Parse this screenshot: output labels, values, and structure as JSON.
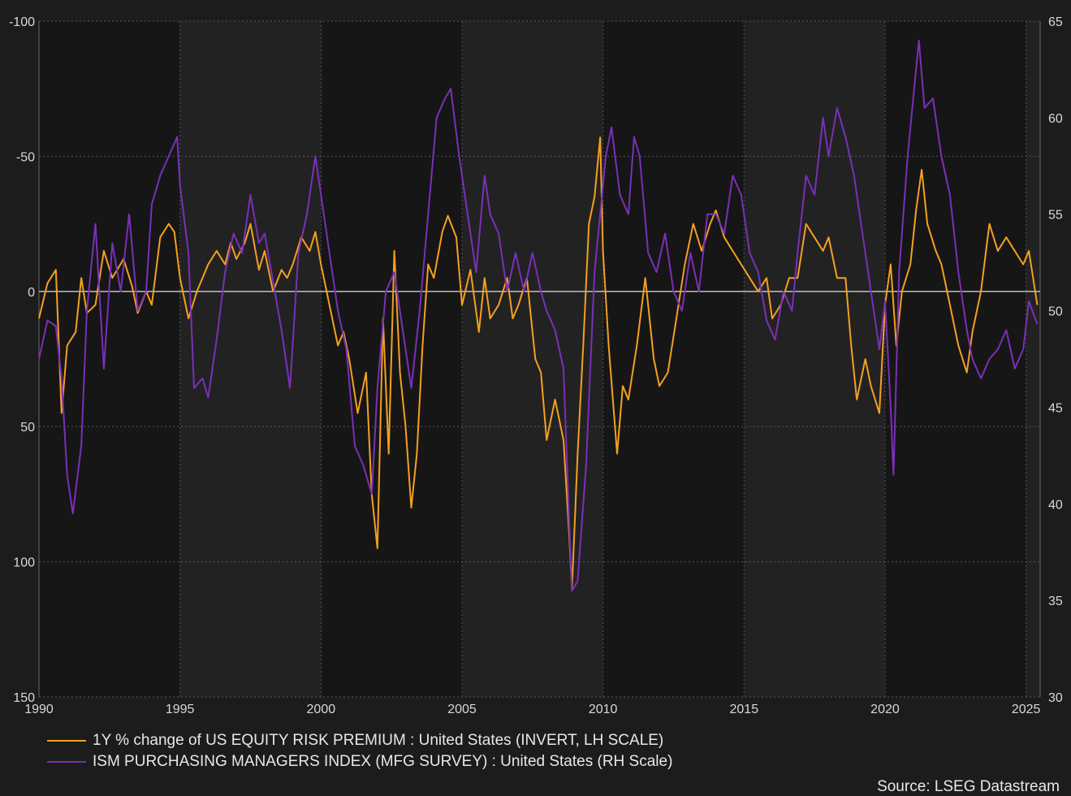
{
  "chart_data": {
    "type": "line",
    "x_ticks": [
      "1990",
      "1995",
      "2000",
      "2005",
      "2010",
      "2015",
      "2020",
      "2025"
    ],
    "x_range": [
      1990,
      2025.5
    ],
    "left_axis": {
      "ticks": [
        "-100",
        "-50",
        "0",
        "50",
        "100",
        "150"
      ],
      "range": [
        -100,
        150
      ],
      "inverted": true
    },
    "right_axis": {
      "ticks": [
        "65",
        "60",
        "55",
        "50",
        "45",
        "40",
        "35",
        "30"
      ],
      "range": [
        30,
        65
      ]
    },
    "grid": true,
    "zero_line": true,
    "legend_placement": "bottom-left",
    "series": [
      {
        "name": "1Y % change of US EQUITY RISK PREMIUM : United States (INVERT, LH SCALE)",
        "axis": "left",
        "color": "#f5a020",
        "points": [
          [
            1990.0,
            10
          ],
          [
            1990.3,
            -3
          ],
          [
            1990.6,
            -8
          ],
          [
            1990.8,
            45
          ],
          [
            1991.0,
            20
          ],
          [
            1991.3,
            15
          ],
          [
            1991.5,
            -5
          ],
          [
            1991.7,
            8
          ],
          [
            1992.0,
            5
          ],
          [
            1992.3,
            -15
          ],
          [
            1992.6,
            -5
          ],
          [
            1993.0,
            -12
          ],
          [
            1993.3,
            -2
          ],
          [
            1993.5,
            8
          ],
          [
            1993.8,
            0
          ],
          [
            1994.0,
            5
          ],
          [
            1994.3,
            -20
          ],
          [
            1994.6,
            -25
          ],
          [
            1994.8,
            -22
          ],
          [
            1995.0,
            -5
          ],
          [
            1995.3,
            10
          ],
          [
            1995.6,
            0
          ],
          [
            1995.8,
            -5
          ],
          [
            1996.0,
            -10
          ],
          [
            1996.3,
            -15
          ],
          [
            1996.6,
            -10
          ],
          [
            1996.8,
            -18
          ],
          [
            1997.0,
            -12
          ],
          [
            1997.3,
            -18
          ],
          [
            1997.5,
            -25
          ],
          [
            1997.8,
            -8
          ],
          [
            1998.0,
            -15
          ],
          [
            1998.3,
            0
          ],
          [
            1998.6,
            -8
          ],
          [
            1998.8,
            -5
          ],
          [
            1999.0,
            -10
          ],
          [
            1999.3,
            -20
          ],
          [
            1999.6,
            -15
          ],
          [
            1999.8,
            -22
          ],
          [
            2000.0,
            -10
          ],
          [
            2000.3,
            5
          ],
          [
            2000.6,
            20
          ],
          [
            2000.8,
            15
          ],
          [
            2001.0,
            25
          ],
          [
            2001.3,
            45
          ],
          [
            2001.6,
            30
          ],
          [
            2001.8,
            75
          ],
          [
            2002.0,
            95
          ],
          [
            2002.2,
            10
          ],
          [
            2002.4,
            60
          ],
          [
            2002.6,
            -15
          ],
          [
            2002.8,
            30
          ],
          [
            2003.0,
            50
          ],
          [
            2003.2,
            80
          ],
          [
            2003.4,
            60
          ],
          [
            2003.6,
            20
          ],
          [
            2003.8,
            -10
          ],
          [
            2004.0,
            -5
          ],
          [
            2004.3,
            -22
          ],
          [
            2004.5,
            -28
          ],
          [
            2004.8,
            -20
          ],
          [
            2005.0,
            5
          ],
          [
            2005.3,
            -8
          ],
          [
            2005.6,
            15
          ],
          [
            2005.8,
            -5
          ],
          [
            2006.0,
            10
          ],
          [
            2006.3,
            5
          ],
          [
            2006.6,
            -5
          ],
          [
            2006.8,
            10
          ],
          [
            2007.0,
            5
          ],
          [
            2007.3,
            -5
          ],
          [
            2007.6,
            25
          ],
          [
            2007.8,
            30
          ],
          [
            2008.0,
            55
          ],
          [
            2008.3,
            40
          ],
          [
            2008.6,
            55
          ],
          [
            2008.8,
            90
          ],
          [
            2008.9,
            110
          ],
          [
            2009.1,
            60
          ],
          [
            2009.3,
            20
          ],
          [
            2009.5,
            -25
          ],
          [
            2009.7,
            -35
          ],
          [
            2009.9,
            -57
          ],
          [
            2010.0,
            -15
          ],
          [
            2010.2,
            20
          ],
          [
            2010.5,
            60
          ],
          [
            2010.7,
            35
          ],
          [
            2010.9,
            40
          ],
          [
            2011.2,
            20
          ],
          [
            2011.5,
            -5
          ],
          [
            2011.8,
            25
          ],
          [
            2012.0,
            35
          ],
          [
            2012.3,
            30
          ],
          [
            2012.6,
            10
          ],
          [
            2012.9,
            -10
          ],
          [
            2013.2,
            -25
          ],
          [
            2013.5,
            -15
          ],
          [
            2013.8,
            -25
          ],
          [
            2014.0,
            -30
          ],
          [
            2014.3,
            -20
          ],
          [
            2014.6,
            -15
          ],
          [
            2014.9,
            -10
          ],
          [
            2015.2,
            -5
          ],
          [
            2015.5,
            0
          ],
          [
            2015.8,
            -5
          ],
          [
            2016.0,
            10
          ],
          [
            2016.3,
            5
          ],
          [
            2016.6,
            -5
          ],
          [
            2016.9,
            -5
          ],
          [
            2017.2,
            -25
          ],
          [
            2017.5,
            -20
          ],
          [
            2017.8,
            -15
          ],
          [
            2018.0,
            -20
          ],
          [
            2018.3,
            -5
          ],
          [
            2018.6,
            -5
          ],
          [
            2018.8,
            20
          ],
          [
            2019.0,
            40
          ],
          [
            2019.3,
            25
          ],
          [
            2019.5,
            35
          ],
          [
            2019.8,
            45
          ],
          [
            2020.0,
            5
          ],
          [
            2020.2,
            -10
          ],
          [
            2020.4,
            20
          ],
          [
            2020.6,
            0
          ],
          [
            2020.9,
            -10
          ],
          [
            2021.1,
            -30
          ],
          [
            2021.3,
            -45
          ],
          [
            2021.5,
            -25
          ],
          [
            2021.8,
            -15
          ],
          [
            2022.0,
            -10
          ],
          [
            2022.3,
            5
          ],
          [
            2022.6,
            20
          ],
          [
            2022.9,
            30
          ],
          [
            2023.1,
            15
          ],
          [
            2023.4,
            0
          ],
          [
            2023.7,
            -25
          ],
          [
            2024.0,
            -15
          ],
          [
            2024.3,
            -20
          ],
          [
            2024.6,
            -15
          ],
          [
            2024.9,
            -10
          ],
          [
            2025.1,
            -15
          ],
          [
            2025.4,
            5
          ]
        ]
      },
      {
        "name": "ISM PURCHASING MANAGERS INDEX (MFG SURVEY) : United States (RH Scale)",
        "axis": "right",
        "color": "#7a30b8",
        "points": [
          [
            1990.0,
            47.5
          ],
          [
            1990.3,
            49.5
          ],
          [
            1990.6,
            49.2
          ],
          [
            1990.8,
            46.5
          ],
          [
            1991.0,
            41.5
          ],
          [
            1991.2,
            39.5
          ],
          [
            1991.5,
            43
          ],
          [
            1991.7,
            50
          ],
          [
            1992.0,
            54.5
          ],
          [
            1992.3,
            47
          ],
          [
            1992.6,
            53.5
          ],
          [
            1992.9,
            51
          ],
          [
            1993.2,
            55
          ],
          [
            1993.5,
            50
          ],
          [
            1993.8,
            51
          ],
          [
            1994.0,
            55.5
          ],
          [
            1994.3,
            57
          ],
          [
            1994.6,
            58
          ],
          [
            1994.9,
            59
          ],
          [
            1995.0,
            56.5
          ],
          [
            1995.3,
            53
          ],
          [
            1995.5,
            46
          ],
          [
            1995.8,
            46.5
          ],
          [
            1996.0,
            45.5
          ],
          [
            1996.3,
            48.5
          ],
          [
            1996.6,
            52
          ],
          [
            1996.9,
            54
          ],
          [
            1997.2,
            53
          ],
          [
            1997.5,
            56
          ],
          [
            1997.8,
            53.5
          ],
          [
            1998.0,
            54
          ],
          [
            1998.3,
            51.5
          ],
          [
            1998.6,
            49
          ],
          [
            1998.9,
            46
          ],
          [
            1999.2,
            53
          ],
          [
            1999.5,
            55
          ],
          [
            1999.8,
            58
          ],
          [
            2000.0,
            56
          ],
          [
            2000.3,
            53
          ],
          [
            2000.6,
            50
          ],
          [
            2000.9,
            48
          ],
          [
            2001.2,
            43
          ],
          [
            2001.5,
            42
          ],
          [
            2001.8,
            40.5
          ],
          [
            2002.0,
            46
          ],
          [
            2002.3,
            51
          ],
          [
            2002.6,
            52
          ],
          [
            2002.9,
            49
          ],
          [
            2003.2,
            46
          ],
          [
            2003.5,
            50
          ],
          [
            2003.8,
            55
          ],
          [
            2004.1,
            60
          ],
          [
            2004.4,
            61
          ],
          [
            2004.6,
            61.5
          ],
          [
            2004.9,
            58
          ],
          [
            2005.2,
            55
          ],
          [
            2005.5,
            52
          ],
          [
            2005.8,
            57
          ],
          [
            2006.0,
            55
          ],
          [
            2006.3,
            54
          ],
          [
            2006.6,
            51
          ],
          [
            2006.9,
            53
          ],
          [
            2007.2,
            51
          ],
          [
            2007.5,
            53
          ],
          [
            2007.8,
            51
          ],
          [
            2008.0,
            50
          ],
          [
            2008.3,
            49
          ],
          [
            2008.6,
            47
          ],
          [
            2008.8,
            39
          ],
          [
            2008.9,
            35.5
          ],
          [
            2009.1,
            36
          ],
          [
            2009.4,
            42
          ],
          [
            2009.7,
            52
          ],
          [
            2009.9,
            55
          ],
          [
            2010.1,
            58
          ],
          [
            2010.3,
            59.5
          ],
          [
            2010.6,
            56
          ],
          [
            2010.9,
            55
          ],
          [
            2011.1,
            59
          ],
          [
            2011.3,
            58
          ],
          [
            2011.6,
            53
          ],
          [
            2011.9,
            52
          ],
          [
            2012.2,
            54
          ],
          [
            2012.5,
            51
          ],
          [
            2012.8,
            50
          ],
          [
            2013.1,
            53
          ],
          [
            2013.4,
            51
          ],
          [
            2013.7,
            55
          ],
          [
            2014.0,
            55
          ],
          [
            2014.3,
            54
          ],
          [
            2014.6,
            57
          ],
          [
            2014.9,
            56
          ],
          [
            2015.2,
            53
          ],
          [
            2015.5,
            52
          ],
          [
            2015.8,
            49.5
          ],
          [
            2016.1,
            48.5
          ],
          [
            2016.4,
            51
          ],
          [
            2016.7,
            50
          ],
          [
            2016.9,
            53
          ],
          [
            2017.2,
            57
          ],
          [
            2017.5,
            56
          ],
          [
            2017.8,
            60
          ],
          [
            2018.0,
            58
          ],
          [
            2018.3,
            60.5
          ],
          [
            2018.6,
            59
          ],
          [
            2018.9,
            57
          ],
          [
            2019.2,
            54
          ],
          [
            2019.5,
            51
          ],
          [
            2019.8,
            48
          ],
          [
            2020.0,
            50.5
          ],
          [
            2020.2,
            45
          ],
          [
            2020.3,
            41.5
          ],
          [
            2020.5,
            52
          ],
          [
            2020.8,
            58
          ],
          [
            2021.0,
            61
          ],
          [
            2021.2,
            64
          ],
          [
            2021.4,
            60.5
          ],
          [
            2021.7,
            61
          ],
          [
            2022.0,
            58
          ],
          [
            2022.3,
            56
          ],
          [
            2022.6,
            52
          ],
          [
            2022.9,
            49
          ],
          [
            2023.1,
            47.5
          ],
          [
            2023.4,
            46.5
          ],
          [
            2023.7,
            47.5
          ],
          [
            2024.0,
            48
          ],
          [
            2024.3,
            49
          ],
          [
            2024.6,
            47
          ],
          [
            2024.9,
            48
          ],
          [
            2025.1,
            50.5
          ],
          [
            2025.4,
            49.3
          ]
        ]
      }
    ]
  },
  "source": "Source: LSEG Datastream"
}
